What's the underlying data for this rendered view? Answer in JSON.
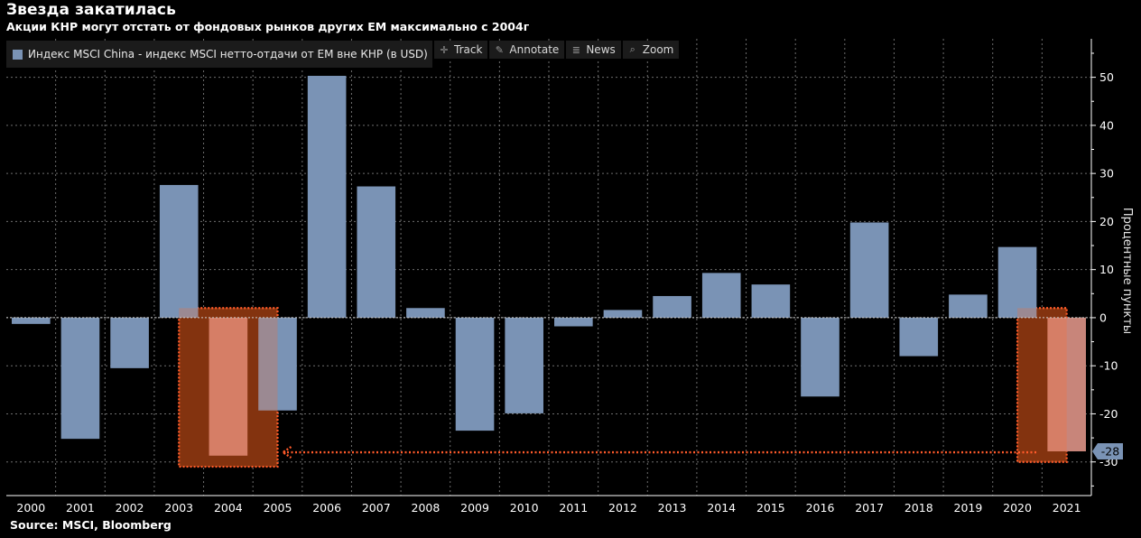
{
  "title": "Звезда закатилась",
  "subtitle": "Акции КНР могут отстать от фондовых рынков других EM максимально с 2004г",
  "source": "Source: MSCI, Bloomberg",
  "toolbar": {
    "track": {
      "label": "Track",
      "icon": "crosshair-icon"
    },
    "annotate": {
      "label": "Annotate",
      "icon": "pencil-icon"
    },
    "news": {
      "label": "News",
      "icon": "news-icon"
    },
    "zoom": {
      "label": "Zoom",
      "icon": "magnifier-icon"
    }
  },
  "colors": {
    "bar": "#7a93b5",
    "highlight_fill": "#5a2106",
    "highlight_border": "#ff5a2a",
    "highlight_bar": "#c8857a",
    "grid": "#6e6e6e",
    "last_value_badge": "#7a93b5"
  },
  "chart_data": {
    "type": "bar",
    "title": "Звезда закатилась",
    "subtitle": "Акции КНР могут отстать от фондовых рынков других EM максимально с 2004г",
    "ylabel": "Процентные пункты",
    "xlabel": "",
    "ylim": [
      -37,
      58
    ],
    "yticks": [
      -30,
      -20,
      -10,
      0,
      10,
      20,
      30,
      40,
      50
    ],
    "grid": true,
    "legend_position": "top-left",
    "categories": [
      "2000",
      "2001",
      "2002",
      "2003",
      "2004",
      "2005",
      "2006",
      "2007",
      "2008",
      "2009",
      "2010",
      "2011",
      "2012",
      "2013",
      "2014",
      "2015",
      "2016",
      "2017",
      "2018",
      "2019",
      "2020",
      "2021"
    ],
    "series": [
      {
        "name": "Индекс MSCI China - индекс MSCI нетто-отдачи от EM вне КНР (в USD)",
        "values": [
          -1.3,
          -25.2,
          -10.5,
          27.6,
          -28.7,
          -19.3,
          50.3,
          27.3,
          2.0,
          -23.5,
          -19.9,
          -1.8,
          1.6,
          4.5,
          9.3,
          6.9,
          -16.4,
          19.8,
          -8.0,
          4.8,
          14.7,
          -27.8
        ]
      }
    ],
    "last_value_label": "-28",
    "highlighted_categories": [
      "2004",
      "2021"
    ],
    "highlight_ranges": [
      {
        "from": "2003",
        "to": "2005",
        "ymin": -31,
        "ymax": 2
      },
      {
        "from": "2020",
        "to": "2021",
        "ymin": -30,
        "ymax": 2
      }
    ],
    "annotation": {
      "type": "arrow",
      "from_category": "2021",
      "to_category": "2004",
      "y": -28
    }
  }
}
